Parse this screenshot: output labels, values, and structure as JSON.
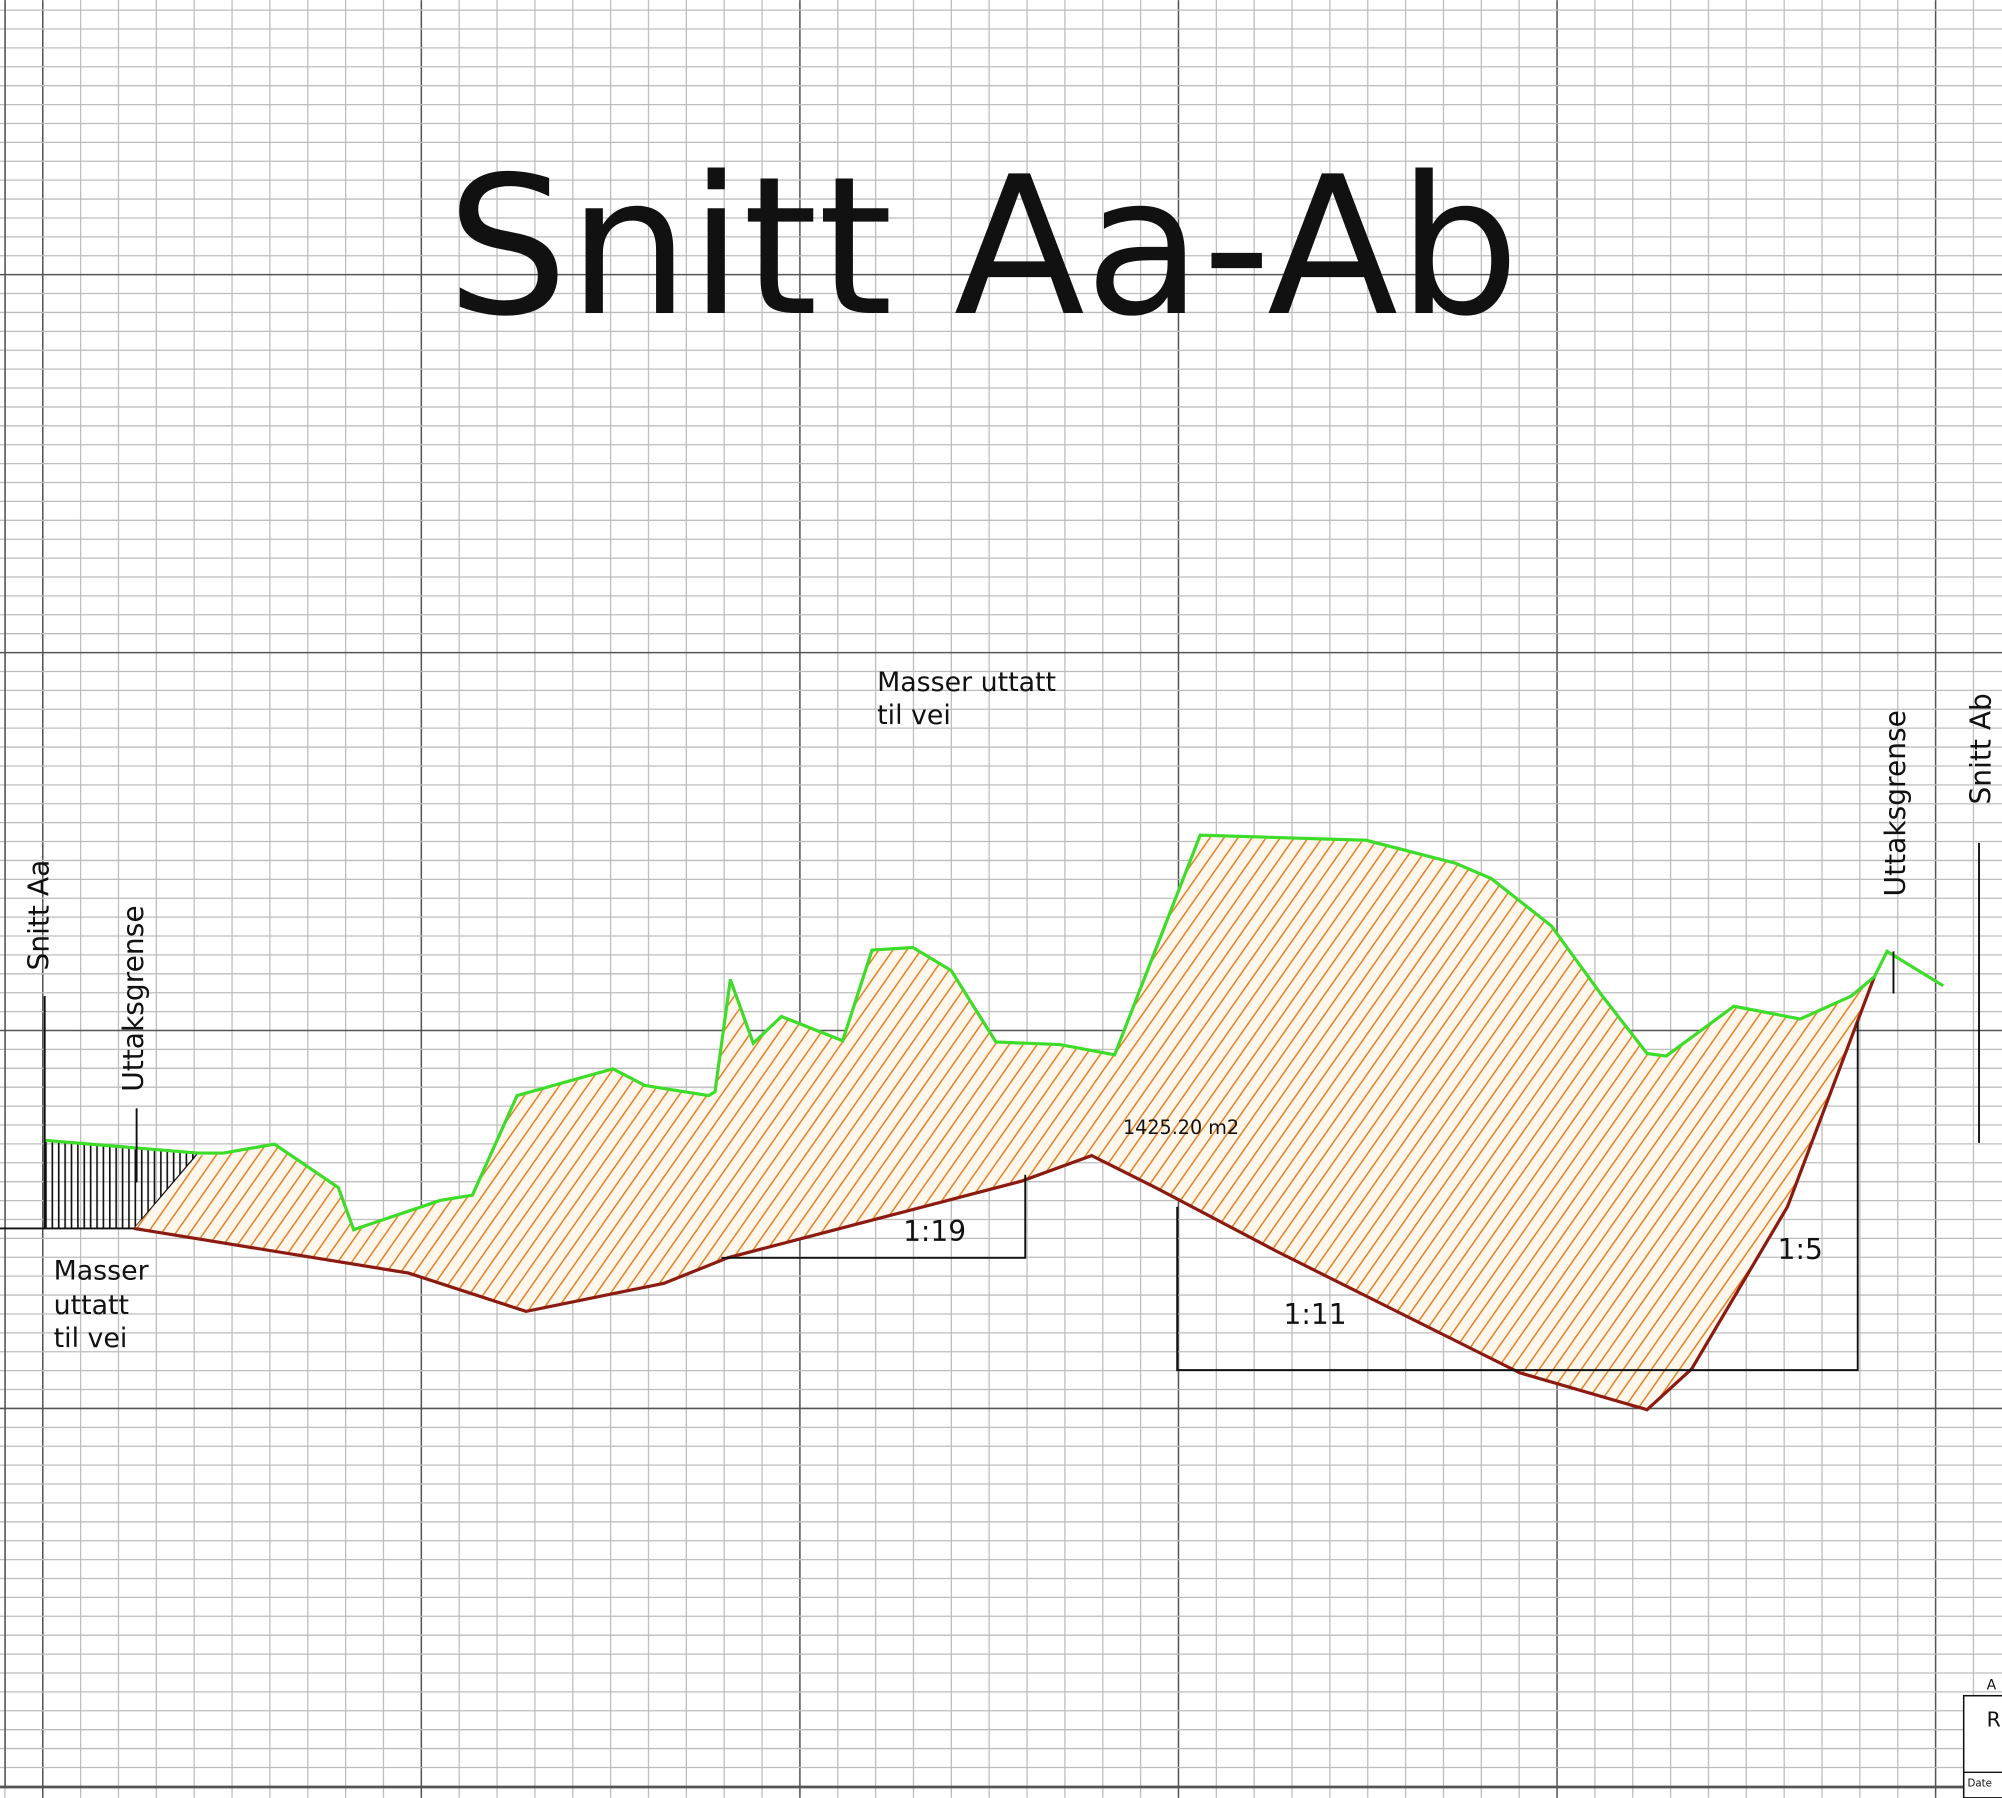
{
  "title": "Snitt Aa-Ab",
  "labels": {
    "top_note": [
      "Masser uttatt",
      "til vei"
    ],
    "left_note": [
      "Masser",
      "uttatt",
      "til vei"
    ],
    "section_start": "Snitt Aa",
    "section_end": "Snitt Ab",
    "boundary_left": "Uttaksgrense",
    "boundary_right": "Uttaksgrense",
    "area": "1425.20 m2",
    "slopes": [
      "1:19",
      "1:11",
      "1:5"
    ]
  },
  "title_block": [
    "A",
    "R",
    "Date"
  ]
}
